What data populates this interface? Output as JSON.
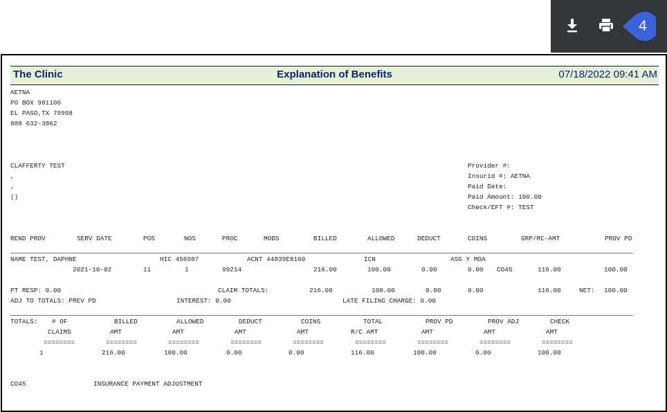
{
  "toolbar": {
    "download_icon": "download-icon",
    "print_icon": "print-icon",
    "step_number": "4",
    "badge_color": "#3a62db"
  },
  "eob": {
    "clinic": "The Clinic",
    "title": "Explanation of Benefits",
    "datetime": "07/18/2022 09:41 AM",
    "payer": {
      "name": "AETNA",
      "address1": "PO BOX 981106",
      "address2": "EL PASO,TX 79998",
      "phone": "888 632-3862"
    },
    "patient": {
      "name": "CLAFFERTY TEST",
      "line2": ",",
      "line3": ",",
      "line4": "()"
    },
    "provider": [
      "Provider #:",
      "Insurid #: AETNA",
      "Paid Date:",
      "Paid Amount: 100.00",
      "Check/EFT #: TEST"
    ],
    "columns": [
      "REND PROV",
      "SERV DATE",
      "POS",
      "NOS",
      "PROC",
      "MODS",
      "BILLED",
      "ALLOWED",
      "DEDUCT",
      "COINS",
      "GRP/RC-AMT",
      "PROV PD"
    ],
    "claim": {
      "name": "NAME TEST, DAPHNE",
      "hic": "HIC 456987",
      "acnt": "ACNT 44839E8160",
      "icn": "ICN",
      "asg": "ASG Y MOA",
      "serv_date": "2021-10-02",
      "pos": "11",
      "nos": "1",
      "proc": "99214",
      "billed": "216.00",
      "allowed": "100.00",
      "deduct": "0.00",
      "coins": "0.00",
      "grp_code": "CO45",
      "grp_amt": "116.00",
      "prov_pd": "100.00"
    },
    "summary": {
      "pt_resp": "PT RESP: 0.00",
      "claim_totals_label": "CLAIM TOTALS:",
      "ct_billed": "216.00",
      "ct_allowed": "100.00",
      "ct_deduct": "0.00",
      "ct_coins": "0.00",
      "ct_grp": "116.00",
      "net_label": "NET:",
      "net_value": "100.00",
      "adj": "ADJ TO TOTALS: PREV PD",
      "interest": "INTEREST: 0.00",
      "late": "LATE FILING CHARGE: 0.00"
    },
    "totals": {
      "label": "TOTALS:",
      "cols": [
        {
          "h1": "# OF",
          "h2": "CLAIMS",
          "dash": "========",
          "val": "1"
        },
        {
          "h1": "BILLED",
          "h2": "AMT",
          "dash": "========",
          "val": "216.00"
        },
        {
          "h1": "ALLOWED",
          "h2": "AMT",
          "dash": "========",
          "val": "100.00"
        },
        {
          "h1": "DEDUCT",
          "h2": "AMT",
          "dash": "========",
          "val": "0.00"
        },
        {
          "h1": "COINS",
          "h2": "AMT",
          "dash": "========",
          "val": "0.00"
        },
        {
          "h1": "TOTAL",
          "h2": "R/C AMT",
          "dash": "========",
          "val": "116.00"
        },
        {
          "h1": "PROV PD",
          "h2": "AMT",
          "dash": "========",
          "val": "100.00"
        },
        {
          "h1": "PROV ADJ",
          "h2": "AMT",
          "dash": "========",
          "val": "0.00"
        },
        {
          "h1": "CHECK",
          "h2": "AMT",
          "dash": "========",
          "val": "100.00"
        }
      ]
    },
    "footnote": {
      "code": "CO45",
      "desc": "INSURANCE PAYMENT ADJUSTMENT"
    }
  }
}
